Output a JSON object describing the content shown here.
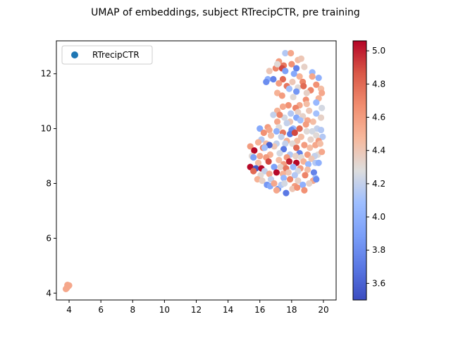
{
  "chart_data": {
    "type": "scatter",
    "title": "UMAP of embeddings, subject RTrecipCTR, pre training",
    "xlabel": "",
    "ylabel": "",
    "xlim": [
      3.2,
      20.8
    ],
    "ylim": [
      3.75,
      13.2
    ],
    "xticks": [
      4,
      6,
      8,
      10,
      12,
      14,
      16,
      18,
      20
    ],
    "yticks": [
      4,
      6,
      8,
      10,
      12
    ],
    "grid": false,
    "legend": {
      "placement": "upper-left",
      "entries": [
        "RTrecipCTR"
      ],
      "marker_color": "#1f77b4"
    },
    "colorbar": {
      "colormap": "coolwarm",
      "range": [
        3.5,
        5.06
      ],
      "ticks": [
        3.6,
        3.8,
        4.0,
        4.2,
        4.4,
        4.6,
        4.8,
        5.0
      ]
    },
    "series": [
      {
        "name": "RTrecipCTR",
        "points": [
          [
            3.85,
            4.18,
            4.55
          ],
          [
            3.95,
            4.25,
            4.55
          ],
          [
            3.9,
            4.3,
            4.55
          ],
          [
            3.8,
            4.15,
            4.55
          ],
          [
            4.0,
            4.28,
            4.55
          ],
          [
            3.88,
            4.22,
            4.55
          ],
          [
            17.6,
            12.75,
            4.15
          ],
          [
            17.95,
            12.75,
            4.55
          ],
          [
            17.2,
            12.45,
            4.6
          ],
          [
            18.4,
            12.5,
            4.45
          ],
          [
            18.6,
            12.55,
            4.4
          ],
          [
            17.5,
            12.3,
            4.75
          ],
          [
            17.0,
            12.2,
            4.7
          ],
          [
            17.4,
            12.2,
            4.9
          ],
          [
            18.0,
            12.35,
            4.65
          ],
          [
            18.8,
            12.25,
            4.35
          ],
          [
            18.3,
            12.2,
            3.75
          ],
          [
            17.1,
            12.35,
            4.3
          ],
          [
            16.6,
            12.1,
            4.4
          ],
          [
            17.6,
            12.1,
            3.9
          ],
          [
            18.15,
            12.0,
            3.95
          ],
          [
            18.5,
            11.9,
            4.5
          ],
          [
            19.3,
            12.05,
            4.05
          ],
          [
            19.3,
            11.9,
            4.55
          ],
          [
            19.7,
            11.85,
            4.0
          ],
          [
            16.5,
            11.8,
            4.0
          ],
          [
            16.85,
            11.8,
            3.75
          ],
          [
            17.45,
            11.8,
            4.8
          ],
          [
            18.05,
            11.7,
            4.4
          ],
          [
            18.7,
            11.7,
            4.7
          ],
          [
            16.4,
            11.7,
            3.8
          ],
          [
            17.2,
            11.65,
            4.6
          ],
          [
            17.7,
            11.55,
            4.75
          ],
          [
            18.4,
            11.5,
            4.3
          ],
          [
            18.75,
            11.55,
            4.8
          ],
          [
            19.55,
            11.6,
            4.65
          ],
          [
            19.85,
            11.45,
            4.45
          ],
          [
            17.85,
            11.45,
            4.1
          ],
          [
            18.3,
            11.35,
            3.85
          ],
          [
            19.2,
            11.4,
            4.7
          ],
          [
            19.9,
            11.3,
            4.55
          ],
          [
            19.7,
            11.1,
            4.5
          ],
          [
            17.1,
            11.3,
            4.5
          ],
          [
            18.95,
            11.3,
            4.35
          ],
          [
            17.4,
            11.2,
            4.6
          ],
          [
            18.1,
            11.15,
            4.3
          ],
          [
            18.9,
            11.05,
            4.65
          ],
          [
            19.55,
            10.95,
            4.05
          ],
          [
            17.8,
            10.85,
            4.65
          ],
          [
            18.5,
            10.85,
            4.55
          ],
          [
            18.95,
            10.9,
            4.45
          ],
          [
            19.9,
            10.75,
            4.25
          ],
          [
            17.45,
            10.8,
            4.55
          ],
          [
            18.25,
            10.75,
            4.7
          ],
          [
            17.1,
            10.65,
            4.5
          ],
          [
            19.1,
            10.65,
            4.4
          ],
          [
            19.55,
            10.55,
            4.1
          ],
          [
            17.55,
            10.4,
            4.25
          ],
          [
            17.95,
            10.55,
            4.15
          ],
          [
            18.4,
            10.6,
            4.35
          ],
          [
            18.7,
            10.45,
            4.35
          ],
          [
            17.25,
            10.5,
            4.7
          ],
          [
            19.35,
            10.25,
            4.45
          ],
          [
            19.85,
            10.4,
            4.35
          ],
          [
            16.85,
            10.5,
            4.2
          ],
          [
            18.3,
            10.4,
            3.95
          ],
          [
            18.55,
            10.3,
            4.1
          ],
          [
            19.0,
            10.3,
            4.55
          ],
          [
            17.9,
            10.25,
            4.4
          ],
          [
            17.1,
            10.25,
            4.55
          ],
          [
            17.7,
            10.2,
            4.2
          ],
          [
            18.9,
            10.15,
            4.6
          ],
          [
            16.5,
            10.05,
            4.6
          ],
          [
            16.0,
            10.0,
            3.95
          ],
          [
            17.2,
            10.05,
            4.3
          ],
          [
            18.1,
            10.0,
            4.05
          ],
          [
            18.5,
            10.0,
            4.8
          ],
          [
            19.6,
            10.0,
            4.2
          ],
          [
            19.85,
            9.95,
            4.15
          ],
          [
            16.6,
            9.95,
            4.55
          ],
          [
            17.05,
            9.9,
            4.0
          ],
          [
            17.45,
            9.85,
            4.75
          ],
          [
            18.0,
            9.95,
            3.8
          ],
          [
            18.95,
            9.9,
            4.3
          ],
          [
            19.3,
            9.9,
            4.25
          ],
          [
            16.25,
            9.85,
            4.65
          ],
          [
            17.9,
            9.8,
            3.7
          ],
          [
            18.2,
            9.85,
            4.9
          ],
          [
            16.7,
            9.75,
            4.45
          ],
          [
            17.35,
            9.7,
            4.2
          ],
          [
            18.6,
            9.7,
            4.45
          ],
          [
            19.55,
            9.75,
            4.3
          ],
          [
            19.95,
            9.7,
            4.15
          ],
          [
            16.1,
            9.6,
            4.15
          ],
          [
            17.7,
            9.55,
            4.5
          ],
          [
            18.35,
            9.55,
            4.45
          ],
          [
            19.2,
            9.6,
            4.35
          ],
          [
            19.7,
            9.55,
            4.6
          ],
          [
            15.9,
            9.5,
            4.5
          ],
          [
            16.4,
            9.45,
            4.45
          ],
          [
            17.05,
            9.45,
            4.2
          ],
          [
            17.6,
            9.45,
            4.2
          ],
          [
            18.05,
            9.45,
            4.3
          ],
          [
            18.8,
            9.4,
            4.6
          ],
          [
            19.5,
            9.4,
            4.55
          ],
          [
            16.9,
            9.35,
            4.4
          ],
          [
            15.4,
            9.35,
            4.6
          ],
          [
            16.2,
            9.3,
            4.7
          ],
          [
            16.6,
            9.4,
            3.6
          ],
          [
            18.3,
            9.3,
            4.8
          ],
          [
            19.15,
            9.3,
            4.45
          ],
          [
            19.8,
            9.45,
            4.45
          ],
          [
            15.65,
            9.2,
            5.05
          ],
          [
            16.3,
            9.3,
            4.1
          ],
          [
            17.5,
            9.25,
            3.7
          ],
          [
            18.5,
            9.1,
            3.75
          ],
          [
            19.65,
            9.05,
            4.3
          ],
          [
            19.9,
            9.15,
            4.55
          ],
          [
            15.5,
            9.0,
            4.3
          ],
          [
            16.0,
            9.0,
            4.55
          ],
          [
            16.65,
            9.05,
            4.5
          ],
          [
            17.25,
            9.1,
            4.25
          ],
          [
            17.9,
            9.05,
            4.15
          ],
          [
            18.25,
            9.0,
            4.35
          ],
          [
            19.0,
            9.05,
            4.6
          ],
          [
            19.45,
            9.0,
            4.2
          ],
          [
            15.6,
            8.95,
            3.9
          ],
          [
            16.4,
            8.95,
            4.6
          ],
          [
            17.7,
            8.95,
            4.6
          ],
          [
            18.6,
            8.95,
            4.3
          ],
          [
            19.25,
            8.9,
            4.4
          ],
          [
            16.55,
            8.8,
            4.9
          ],
          [
            17.2,
            8.85,
            4.45
          ],
          [
            17.85,
            8.8,
            5.0
          ],
          [
            18.3,
            8.75,
            5.05
          ],
          [
            18.75,
            8.8,
            4.5
          ],
          [
            19.5,
            8.75,
            4.15
          ],
          [
            15.9,
            8.75,
            4.45
          ],
          [
            17.5,
            8.7,
            4.6
          ],
          [
            19.05,
            8.7,
            4.05
          ],
          [
            19.7,
            8.75,
            4.0
          ],
          [
            15.4,
            8.6,
            5.05
          ],
          [
            15.75,
            8.55,
            3.55
          ],
          [
            16.1,
            8.55,
            5.05
          ],
          [
            16.9,
            8.6,
            3.9
          ],
          [
            17.3,
            8.6,
            4.35
          ],
          [
            17.65,
            8.55,
            4.75
          ],
          [
            18.1,
            8.6,
            4.05
          ],
          [
            18.55,
            8.55,
            4.6
          ],
          [
            19.0,
            8.5,
            4.45
          ],
          [
            15.6,
            8.45,
            4.8
          ],
          [
            16.3,
            8.45,
            4.2
          ],
          [
            17.05,
            8.4,
            5.05
          ],
          [
            17.8,
            8.4,
            4.4
          ],
          [
            18.4,
            8.45,
            4.25
          ],
          [
            19.4,
            8.4,
            3.75
          ],
          [
            16.05,
            8.3,
            4.3
          ],
          [
            16.6,
            8.35,
            4.55
          ],
          [
            17.45,
            8.35,
            4.5
          ],
          [
            18.2,
            8.3,
            4.15
          ],
          [
            18.85,
            8.3,
            4.7
          ],
          [
            19.5,
            8.2,
            4.1
          ],
          [
            15.85,
            8.15,
            4.5
          ],
          [
            16.15,
            8.1,
            4.35
          ],
          [
            16.7,
            8.15,
            4.2
          ],
          [
            17.5,
            8.2,
            4.05
          ],
          [
            17.9,
            8.15,
            4.7
          ],
          [
            18.4,
            8.1,
            4.35
          ],
          [
            19.35,
            8.1,
            4.55
          ],
          [
            19.55,
            8.15,
            3.8
          ],
          [
            16.45,
            7.95,
            3.85
          ],
          [
            16.65,
            7.9,
            3.95
          ],
          [
            17.15,
            7.8,
            3.85
          ],
          [
            17.35,
            7.95,
            4.15
          ],
          [
            17.55,
            8.0,
            4.25
          ],
          [
            18.2,
            7.9,
            4.6
          ],
          [
            18.7,
            7.95,
            4.0
          ],
          [
            18.8,
            7.75,
            4.65
          ],
          [
            17.05,
            7.75,
            4.55
          ],
          [
            17.65,
            7.65,
            3.7
          ],
          [
            18.05,
            7.8,
            4.4
          ],
          [
            18.35,
            7.85,
            4.65
          ],
          [
            16.9,
            8.0,
            4.55
          ],
          [
            19.1,
            8.0,
            4.35
          ]
        ]
      }
    ]
  }
}
